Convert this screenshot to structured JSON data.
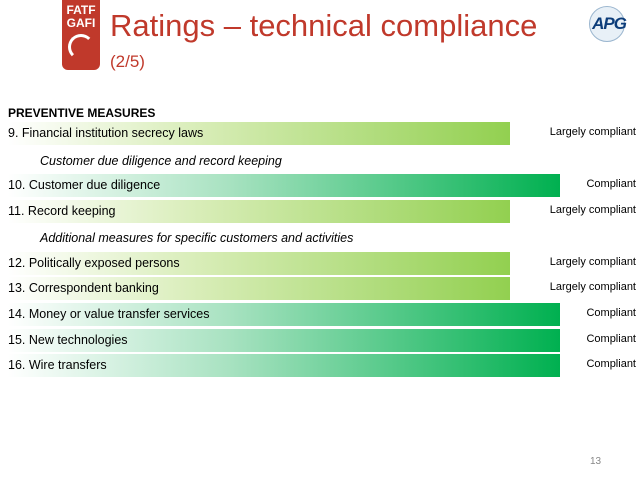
{
  "header": {
    "logo_left_line1": "FATF",
    "logo_left_line2": "GAFI",
    "title": "Ratings – technical compliance",
    "subtitle": "(2/5)",
    "logo_right": "APG"
  },
  "section_heading": "PREVENTIVE MEASURES",
  "colors": {
    "title": "#c0392b",
    "largely_compliant": "#92d050",
    "compliant": "#00b050"
  },
  "rows": [
    {
      "label": "9. Financial institution secrecy laws",
      "rating": "Largely compliant"
    },
    {
      "label": "Customer due diligence and record keeping"
    },
    {
      "label": "10. Customer due diligence",
      "rating": "Compliant"
    },
    {
      "label": "11. Record keeping",
      "rating": "Largely compliant"
    },
    {
      "label": "Additional measures for specific customers and activities"
    },
    {
      "label": "12. Politically exposed persons",
      "rating": "Largely compliant"
    },
    {
      "label": "13. Correspondent banking",
      "rating": "Largely compliant"
    },
    {
      "label": "14. Money or value transfer services",
      "rating": "Compliant"
    },
    {
      "label": "15. New technologies",
      "rating": "Compliant"
    },
    {
      "label": "16. Wire transfers",
      "rating": "Compliant"
    }
  ],
  "page_number": "13"
}
